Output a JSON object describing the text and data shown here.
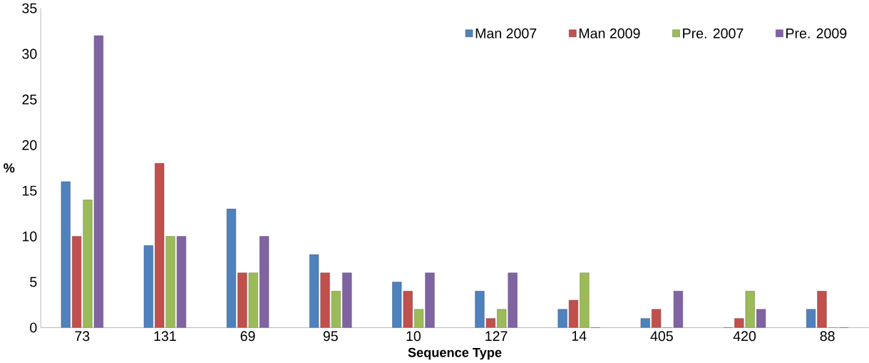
{
  "chart_data": {
    "type": "bar",
    "xlabel": "Sequence Type",
    "ylabel": "%",
    "categories": [
      "73",
      "131",
      "69",
      "95",
      "10",
      "127",
      "14",
      "405",
      "420",
      "88"
    ],
    "series": [
      {
        "name": "Man 2007",
        "color": "#4f81bd",
        "values": [
          16,
          9,
          13,
          8,
          5,
          4,
          2,
          1,
          0,
          2
        ]
      },
      {
        "name": "Man 2009",
        "color": "#c0504d",
        "values": [
          10,
          18,
          6,
          6,
          4,
          1,
          3,
          2,
          1,
          4
        ]
      },
      {
        "name": "Pre. 2007",
        "color": "#9bbb59",
        "values": [
          14,
          10,
          6,
          4,
          2,
          2,
          6,
          0,
          4,
          0
        ]
      },
      {
        "name": "Pre. 2009",
        "color": "#8064a2",
        "values": [
          32,
          10,
          10,
          6,
          6,
          6,
          0,
          4,
          2,
          0
        ]
      }
    ],
    "ylim": [
      0,
      35
    ],
    "yticks": [
      0,
      5,
      10,
      15,
      20,
      25,
      30,
      35
    ],
    "grid": false,
    "legend": "top right"
  }
}
